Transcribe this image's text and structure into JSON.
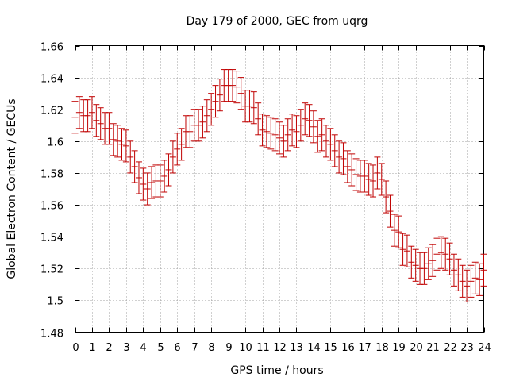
{
  "chart_data": {
    "type": "errorbar",
    "title": "Day 179 of 2000, GEC from uqrg",
    "xlabel": "GPS time / hours",
    "ylabel": "Global Electron Content / GECUs",
    "xlim": [
      0,
      24
    ],
    "ylim": [
      1.48,
      1.66
    ],
    "xticks": [
      0,
      1,
      2,
      3,
      4,
      5,
      6,
      7,
      8,
      9,
      10,
      11,
      12,
      13,
      14,
      15,
      16,
      17,
      18,
      19,
      20,
      21,
      22,
      23,
      24
    ],
    "yticks": [
      1.48,
      1.5,
      1.52,
      1.54,
      1.56,
      1.58,
      1.6,
      1.62,
      1.64,
      1.66
    ],
    "ytick_labels": [
      "1.48",
      "1.5",
      "1.52",
      "1.54",
      "1.56",
      "1.58",
      "1.6",
      "1.62",
      "1.64",
      "1.66"
    ],
    "grid": true,
    "error": 0.01,
    "series_color": "#c00000",
    "x": [
      0.0,
      0.25,
      0.5,
      0.75,
      1.0,
      1.25,
      1.5,
      1.75,
      2.0,
      2.25,
      2.5,
      2.75,
      3.0,
      3.25,
      3.5,
      3.75,
      4.0,
      4.25,
      4.5,
      4.75,
      5.0,
      5.25,
      5.5,
      5.75,
      6.0,
      6.25,
      6.5,
      6.75,
      7.0,
      7.25,
      7.5,
      7.75,
      8.0,
      8.25,
      8.5,
      8.75,
      9.0,
      9.25,
      9.5,
      9.75,
      10.0,
      10.25,
      10.5,
      10.75,
      11.0,
      11.25,
      11.5,
      11.75,
      12.0,
      12.25,
      12.5,
      12.75,
      13.0,
      13.25,
      13.5,
      13.75,
      14.0,
      14.25,
      14.5,
      14.75,
      15.0,
      15.25,
      15.5,
      15.75,
      16.0,
      16.25,
      16.5,
      16.75,
      17.0,
      17.25,
      17.5,
      17.75,
      18.0,
      18.25,
      18.5,
      18.75,
      19.0,
      19.25,
      19.5,
      19.75,
      20.0,
      20.25,
      20.5,
      20.75,
      21.0,
      21.25,
      21.5,
      21.75,
      22.0,
      22.25,
      22.5,
      22.75,
      23.0,
      23.25,
      23.5,
      23.75,
      24.0
    ],
    "y": [
      1.615,
      1.618,
      1.616,
      1.616,
      1.618,
      1.613,
      1.611,
      1.608,
      1.608,
      1.601,
      1.6,
      1.598,
      1.597,
      1.59,
      1.584,
      1.577,
      1.573,
      1.57,
      1.574,
      1.575,
      1.575,
      1.578,
      1.582,
      1.59,
      1.595,
      1.598,
      1.606,
      1.606,
      1.61,
      1.61,
      1.612,
      1.616,
      1.62,
      1.625,
      1.629,
      1.635,
      1.635,
      1.635,
      1.634,
      1.63,
      1.622,
      1.622,
      1.621,
      1.614,
      1.607,
      1.606,
      1.605,
      1.604,
      1.602,
      1.6,
      1.604,
      1.607,
      1.606,
      1.61,
      1.614,
      1.613,
      1.609,
      1.603,
      1.604,
      1.6,
      1.598,
      1.594,
      1.59,
      1.589,
      1.584,
      1.582,
      1.579,
      1.578,
      1.578,
      1.576,
      1.575,
      1.58,
      1.576,
      1.565,
      1.556,
      1.544,
      1.543,
      1.532,
      1.531,
      1.524,
      1.522,
      1.52,
      1.52,
      1.523,
      1.525,
      1.529,
      1.53,
      1.529,
      1.526,
      1.519,
      1.516,
      1.512,
      1.509,
      1.512,
      1.514,
      1.513,
      1.519
    ]
  }
}
